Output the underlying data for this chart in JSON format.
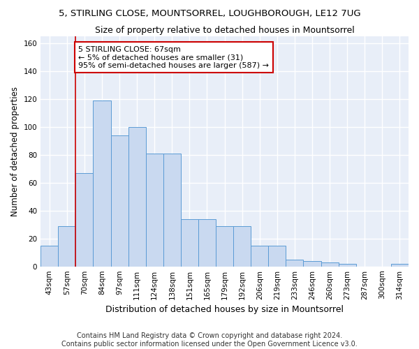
{
  "title1": "5, STIRLING CLOSE, MOUNTSORREL, LOUGHBOROUGH, LE12 7UG",
  "title2": "Size of property relative to detached houses in Mountsorrel",
  "xlabel": "Distribution of detached houses by size in Mountsorrel",
  "ylabel": "Number of detached properties",
  "bar_labels": [
    "43sqm",
    "57sqm",
    "70sqm",
    "84sqm",
    "97sqm",
    "111sqm",
    "124sqm",
    "138sqm",
    "151sqm",
    "165sqm",
    "179sqm",
    "192sqm",
    "206sqm",
    "219sqm",
    "233sqm",
    "246sqm",
    "260sqm",
    "273sqm",
    "287sqm",
    "300sqm",
    "314sqm"
  ],
  "bar_values": [
    15,
    29,
    67,
    119,
    94,
    100,
    81,
    81,
    34,
    34,
    29,
    29,
    15,
    15,
    5,
    4,
    3,
    2,
    0,
    0,
    2
  ],
  "bar_color": "#c9d9f0",
  "bar_edge_color": "#5b9bd5",
  "annotation_text": "5 STIRLING CLOSE: 67sqm\n← 5% of detached houses are smaller (31)\n95% of semi-detached houses are larger (587) →",
  "annotation_box_color": "white",
  "annotation_box_edge_color": "#cc0000",
  "vline_color": "#cc0000",
  "footnote1": "Contains HM Land Registry data © Crown copyright and database right 2024.",
  "footnote2": "Contains public sector information licensed under the Open Government Licence v3.0.",
  "ylim": [
    0,
    165
  ],
  "yticks": [
    0,
    20,
    40,
    60,
    80,
    100,
    120,
    140,
    160
  ],
  "background_color": "#e8eef8",
  "grid_color": "white",
  "title1_fontsize": 9.5,
  "title2_fontsize": 9,
  "xlabel_fontsize": 9,
  "ylabel_fontsize": 8.5,
  "tick_fontsize": 7.5,
  "annot_fontsize": 8,
  "footnote_fontsize": 7
}
